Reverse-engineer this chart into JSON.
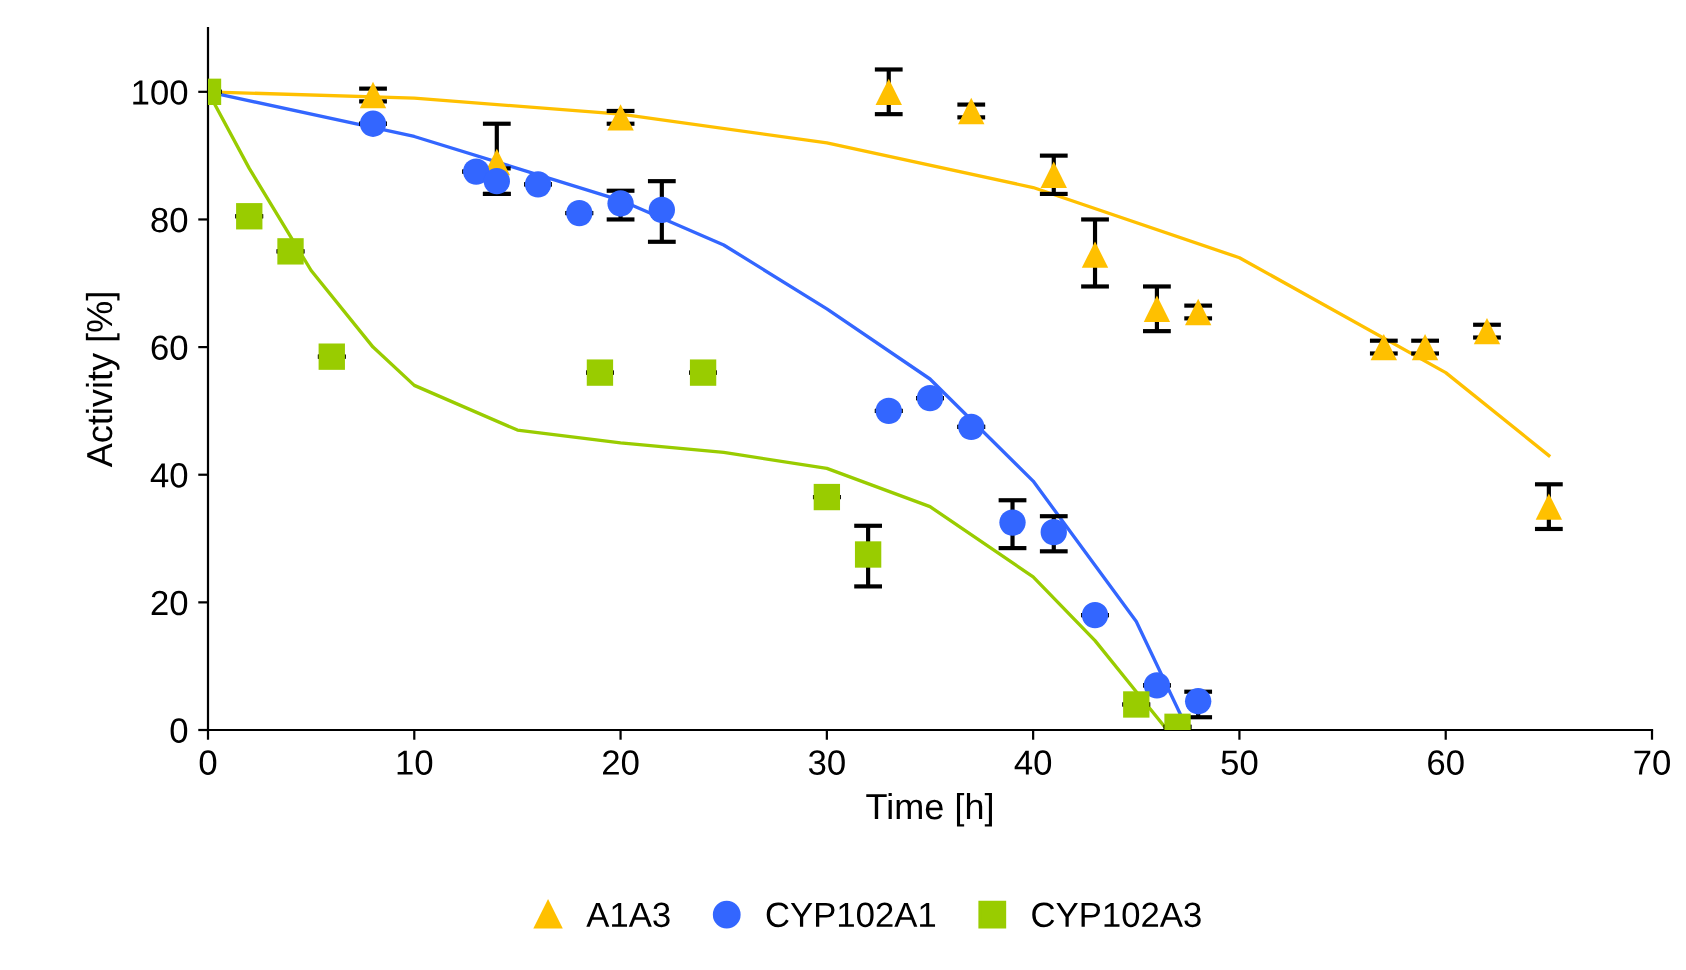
{
  "chart_data": {
    "type": "scatter",
    "xlabel": "Time [h]",
    "ylabel": "Activity [%]",
    "xlim": [
      0,
      70
    ],
    "xticks": [
      0,
      10,
      20,
      30,
      40,
      50,
      60,
      70
    ],
    "ylim": [
      0,
      110
    ],
    "yticks": [
      0,
      20,
      40,
      60,
      80,
      100
    ],
    "grid": false,
    "legend": "bottom",
    "series": [
      {
        "name": "A1A3",
        "color": "#ffc000",
        "marker": "triangle",
        "x": [
          8,
          14,
          20,
          33,
          37,
          41,
          43,
          46,
          48,
          57,
          59,
          62,
          65
        ],
        "values": [
          99.5,
          89,
          96,
          100,
          97,
          87,
          74.5,
          66,
          65.5,
          60,
          60,
          62.5,
          35
        ],
        "errors": [
          1,
          [
            84,
            95
          ],
          1,
          [
            96.5,
            103.5
          ],
          1,
          [
            84,
            90
          ],
          [
            69.5,
            80
          ],
          [
            62.5,
            69.5
          ],
          1,
          1,
          1,
          1,
          [
            31.5,
            38.5
          ]
        ]
      },
      {
        "name": "CYP102A1",
        "color": "#3366ff",
        "marker": "circle",
        "x": [
          8,
          13,
          14,
          16,
          18,
          20,
          22,
          33,
          35,
          37,
          39,
          41,
          43,
          46,
          48
        ],
        "values": [
          95,
          87.5,
          86,
          85.5,
          81,
          82.5,
          81.5,
          50,
          52,
          47.5,
          32.5,
          31,
          18,
          7,
          4.5
        ],
        "errors": [
          null,
          null,
          [
            84,
            88
          ],
          null,
          null,
          [
            80,
            84.5
          ],
          [
            76.5,
            86
          ],
          null,
          null,
          null,
          [
            28.5,
            36
          ],
          [
            28,
            33.5
          ],
          null,
          null,
          [
            2,
            6
          ]
        ]
      },
      {
        "name": "CYP102A3",
        "color": "#99cc00",
        "marker": "square",
        "x": [
          0,
          2,
          4,
          6,
          19,
          24,
          30,
          32,
          45,
          47
        ],
        "values": [
          100,
          80.5,
          75,
          58.5,
          56,
          56,
          36.5,
          27.5,
          4,
          0.5
        ],
        "errors": [
          null,
          null,
          null,
          null,
          null,
          null,
          null,
          [
            22.5,
            32
          ],
          null,
          null
        ]
      },
      {
        "type": "line",
        "color": "#ffc000",
        "x": [
          0,
          10,
          20,
          30,
          40,
          50,
          60,
          65
        ],
        "values": [
          100,
          99,
          96.5,
          92,
          85,
          74,
          56,
          43
        ]
      },
      {
        "type": "line",
        "color": "#3366ff",
        "x": [
          0,
          10,
          20,
          25,
          30,
          35,
          40,
          45,
          47.5
        ],
        "values": [
          100,
          93,
          83,
          76,
          66,
          55,
          39,
          17,
          0
        ]
      },
      {
        "type": "line",
        "color": "#99cc00",
        "x": [
          0,
          2,
          5,
          8,
          10,
          15,
          20,
          25,
          30,
          35,
          40,
          43,
          45,
          46.5
        ],
        "values": [
          100,
          88,
          72,
          60,
          54,
          47,
          45,
          43.5,
          41,
          35,
          24,
          14,
          6,
          0
        ]
      }
    ]
  }
}
